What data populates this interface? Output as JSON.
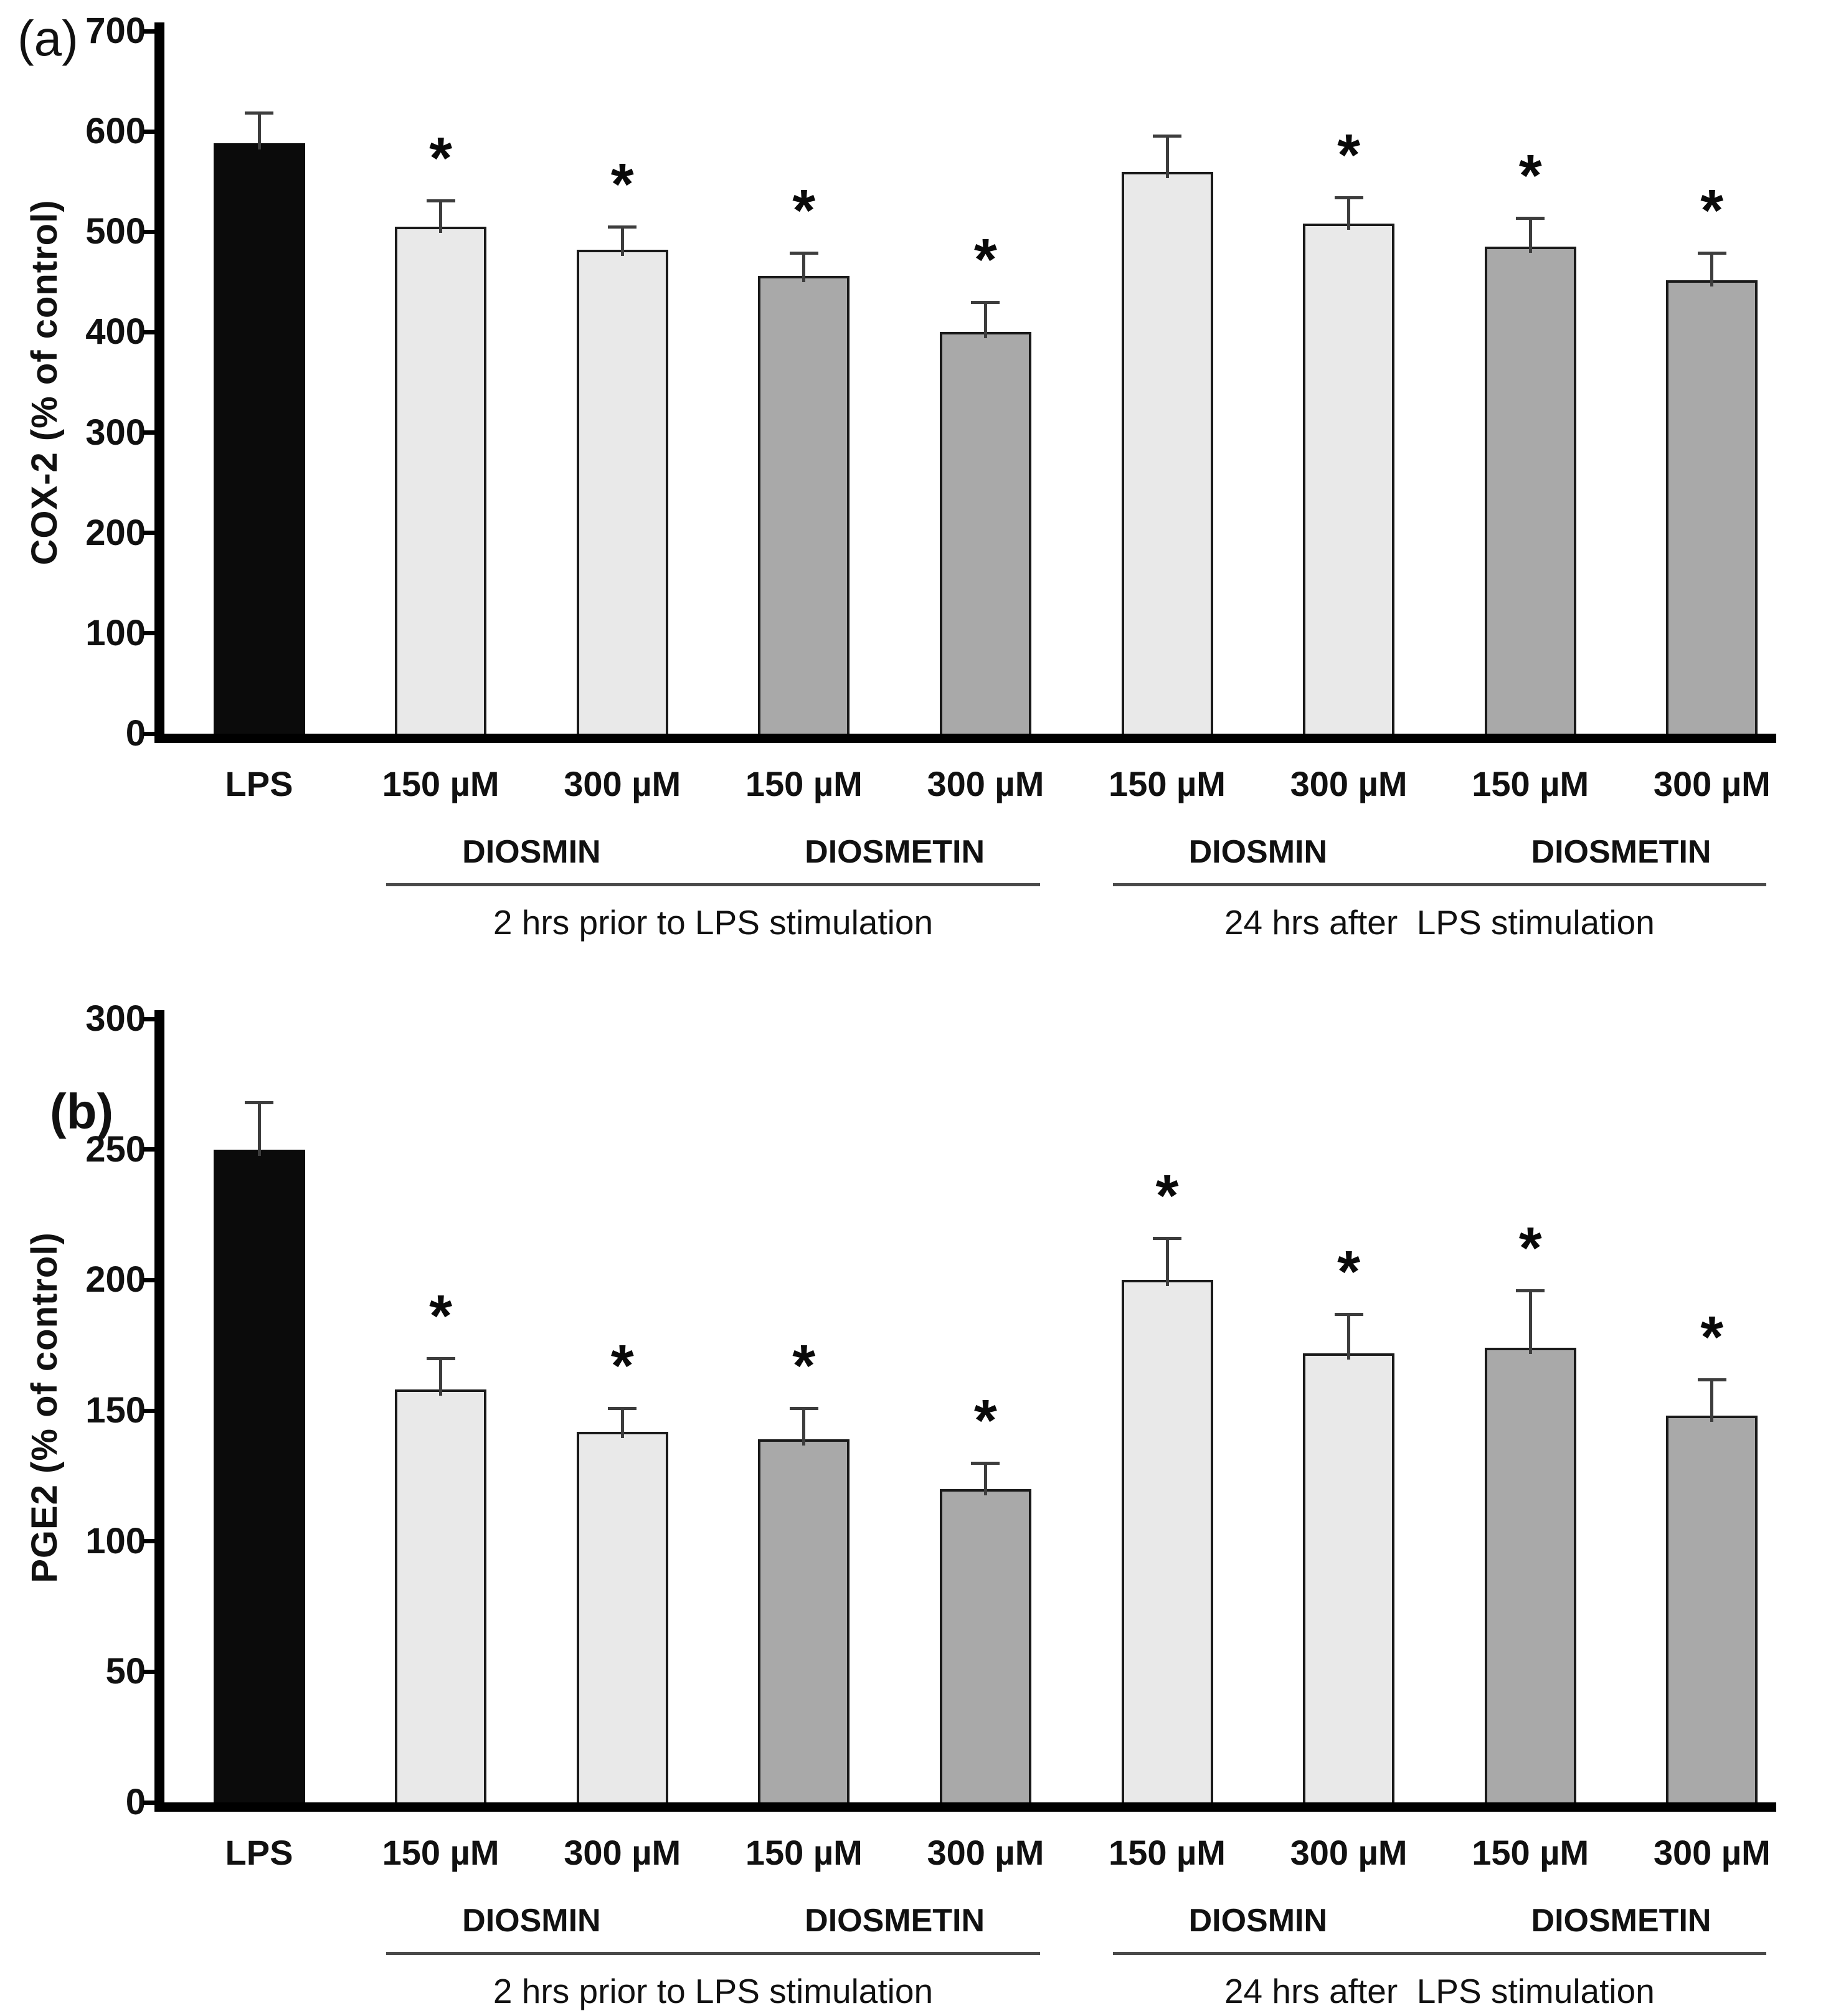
{
  "colors": {
    "lps_bar": "#0b0b0b",
    "diosmin_bar": "#e9e9e9",
    "diosmetin_bar": "#a9a9a9",
    "bar_border": "#1a1a1a",
    "error_bar": "#3d3d3d",
    "axis": "#000000",
    "background": "#ffffff"
  },
  "chart_data": [
    {
      "type": "bar",
      "panel_label": "(a)",
      "ylabel": "COX-2 (% of control)",
      "ylim": [
        0,
        700
      ],
      "ytick_step": 100,
      "yticks": [
        0,
        100,
        200,
        300,
        400,
        500,
        600,
        700
      ],
      "grid": "off",
      "legend": "none",
      "significance_marker": "*",
      "categories": [
        "LPS",
        "150 µM",
        "300 µM",
        "150 µM",
        "300 µM",
        "150 µM",
        "300 µM",
        "150 µM",
        "300 µM"
      ],
      "values": [
        588,
        505,
        482,
        456,
        400,
        560,
        508,
        485,
        452
      ],
      "errors": [
        31,
        26,
        23,
        23,
        30,
        36,
        26,
        29,
        27
      ],
      "significant": [
        false,
        true,
        true,
        true,
        true,
        false,
        true,
        true,
        true
      ],
      "bar_styles": [
        "lps",
        "diosmin",
        "diosmin",
        "diosmetin",
        "diosmetin",
        "diosmin",
        "diosmin",
        "diosmetin",
        "diosmetin"
      ],
      "compound_labels": [
        {
          "text": "DIOSMIN",
          "bars": [
            1,
            2
          ]
        },
        {
          "text": "DIOSMETIN",
          "bars": [
            3,
            4
          ]
        },
        {
          "text": "DIOSMIN",
          "bars": [
            5,
            6
          ]
        },
        {
          "text": "DIOSMETIN",
          "bars": [
            7,
            8
          ]
        }
      ],
      "group_captions": [
        {
          "text": "2 hrs prior to LPS stimulation",
          "bars": [
            1,
            4
          ]
        },
        {
          "text": "24 hrs after  LPS stimulation",
          "bars": [
            5,
            8
          ]
        }
      ]
    },
    {
      "type": "bar",
      "panel_label": "(b)",
      "ylabel": "PGE2 (% of control)",
      "ylim": [
        0,
        300
      ],
      "ytick_step": 50,
      "yticks": [
        0,
        50,
        100,
        150,
        200,
        250,
        300
      ],
      "grid": "off",
      "legend": "none",
      "significance_marker": "*",
      "categories": [
        "LPS",
        "150 µM",
        "300 µM",
        "150 µM",
        "300 µM",
        "150 µM",
        "300 µM",
        "150 µM",
        "300 µM"
      ],
      "values": [
        250,
        158,
        142,
        139,
        120,
        200,
        172,
        174,
        148
      ],
      "errors": [
        18,
        12,
        9,
        12,
        10,
        16,
        15,
        22,
        14
      ],
      "significant": [
        false,
        true,
        true,
        true,
        true,
        true,
        true,
        true,
        true
      ],
      "bar_styles": [
        "lps",
        "diosmin",
        "diosmin",
        "diosmetin",
        "diosmetin",
        "diosmin",
        "diosmin",
        "diosmetin",
        "diosmetin"
      ],
      "compound_labels": [
        {
          "text": "DIOSMIN",
          "bars": [
            1,
            2
          ]
        },
        {
          "text": "DIOSMETIN",
          "bars": [
            3,
            4
          ]
        },
        {
          "text": "DIOSMIN",
          "bars": [
            5,
            6
          ]
        },
        {
          "text": "DIOSMETIN",
          "bars": [
            7,
            8
          ]
        }
      ],
      "group_captions": [
        {
          "text": "2 hrs prior to LPS stimulation",
          "bars": [
            1,
            4
          ]
        },
        {
          "text": "24 hrs after  LPS stimulation",
          "bars": [
            5,
            8
          ]
        }
      ]
    }
  ]
}
